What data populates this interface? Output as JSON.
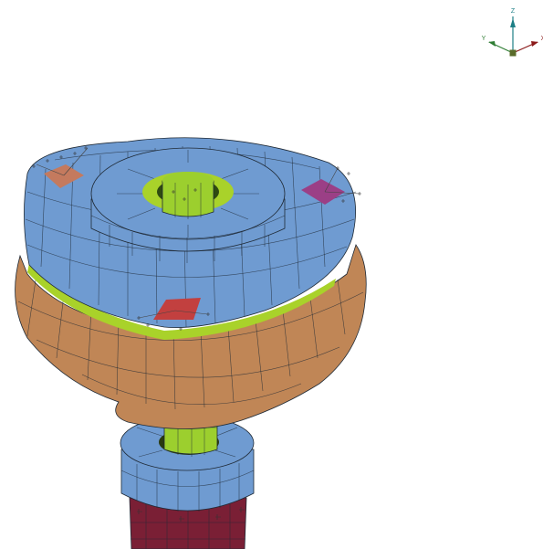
{
  "axis_triad": {
    "z_label": "Z",
    "y_label": "Y",
    "x_label": "X",
    "z_color": "#1e7f86",
    "y_color": "#2f7d34",
    "x_color": "#8b1a1a",
    "origin_color": "#5a6b2a"
  },
  "parts": [
    {
      "name": "upper-flange",
      "color": "#6f9bd1"
    },
    {
      "name": "rubber-bump-stop",
      "color": "#c08656"
    },
    {
      "name": "insulator-layer",
      "color": "#a9d22a"
    },
    {
      "name": "central-rod",
      "color": "#9ccf2e"
    },
    {
      "name": "lower-collar",
      "color": "#6f9bd1"
    },
    {
      "name": "damper-tube",
      "color": "#7a1f35"
    },
    {
      "name": "mount-pad-left",
      "color": "#c47a5e"
    },
    {
      "name": "mount-pad-right",
      "color": "#9b3f86"
    },
    {
      "name": "mount-pad-front",
      "color": "#c2403f"
    }
  ]
}
